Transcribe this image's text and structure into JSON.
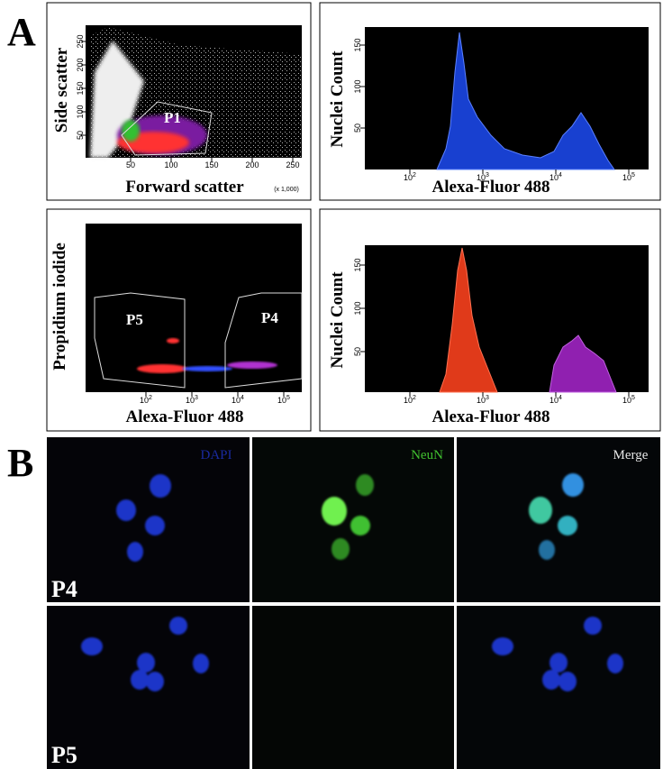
{
  "panel_labels": [
    "A",
    "B"
  ],
  "scatter": {
    "ylabel": "Side scatter",
    "xlabel": "Forward scatter",
    "xunit": "(x 1,000)",
    "xticks": [
      "50",
      "100",
      "150",
      "200",
      "250"
    ],
    "yticks": [
      "50",
      "100",
      "150",
      "200",
      "250"
    ],
    "gate": "P1"
  },
  "histogram_top": {
    "ylabel": "Nuclei Count",
    "xlabel": "Alexa-Fluor 488",
    "yticks": [
      "50",
      "100",
      "150"
    ],
    "xticks": [
      {
        "base": "10",
        "exp": "2"
      },
      {
        "base": "10",
        "exp": "3"
      },
      {
        "base": "10",
        "exp": "4"
      },
      {
        "base": "10",
        "exp": "5"
      }
    ]
  },
  "sort_plot": {
    "ylabel": "Propidium iodide",
    "xlabel": "Alexa-Fluor 488",
    "xticks": [
      {
        "base": "10",
        "exp": "2"
      },
      {
        "base": "10",
        "exp": "3"
      },
      {
        "base": "10",
        "exp": "4"
      },
      {
        "base": "10",
        "exp": "5"
      }
    ],
    "gates": [
      "P5",
      "P4"
    ]
  },
  "histogram_bottom": {
    "ylabel": "Nuclei Count",
    "xlabel": "Alexa-Fluor 488",
    "yticks": [
      "50",
      "100",
      "150"
    ],
    "xticks": [
      {
        "base": "10",
        "exp": "2"
      },
      {
        "base": "10",
        "exp": "3"
      },
      {
        "base": "10",
        "exp": "4"
      },
      {
        "base": "10",
        "exp": "5"
      }
    ]
  },
  "micrographs": {
    "columns": [
      "DAPI",
      "NeuN",
      "Merge"
    ],
    "rows": [
      "P4",
      "P5"
    ]
  }
}
